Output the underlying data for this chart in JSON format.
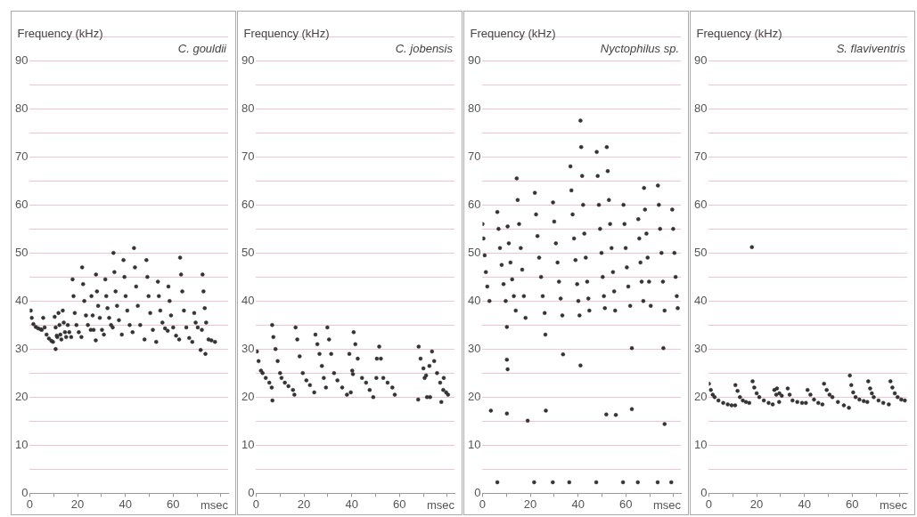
{
  "chart_data": [
    {
      "type": "scatter",
      "title": "C. gouldii",
      "ylabel": "Frequency (kHz)",
      "xlabel": "msec",
      "color": "#333333",
      "marker": "circle",
      "grid": "y",
      "xlim": [
        0,
        83
      ],
      "ylim": [
        0,
        95
      ],
      "xticks": [
        0,
        {
          "value": 10,
          "label": null
        },
        20,
        {
          "value": 30,
          "label": null
        },
        40,
        {
          "value": 50,
          "label": null
        },
        60,
        {
          "value": 70,
          "label": null
        },
        {
          "value": 80,
          "label": null
        }
      ],
      "yticks": [
        0,
        {
          "value": 5,
          "label": null
        },
        10,
        {
          "value": 15,
          "label": null
        },
        20,
        {
          "value": 25,
          "label": null
        },
        30,
        {
          "value": 35,
          "label": null
        },
        40,
        {
          "value": 45,
          "label": null
        },
        50,
        {
          "value": 55,
          "label": null
        },
        60,
        {
          "value": 65,
          "label": null
        },
        70,
        {
          "value": 75,
          "label": null
        },
        80,
        {
          "value": 85,
          "label": null
        },
        90,
        {
          "value": 95,
          "label": null
        }
      ],
      "x": [
        0.4,
        0.8,
        1.5,
        2.5,
        3.5,
        4.5,
        5,
        5.6,
        6.2,
        7,
        8,
        9,
        9.7,
        10.4,
        10.8,
        11.3,
        11.5,
        10.8,
        12,
        12.4,
        12.8,
        13.2,
        13.8,
        14.2,
        14.7,
        15.2,
        15.9,
        16.5,
        17.3,
        17.9,
        18.3,
        18.8,
        19.5,
        20.5,
        21.6,
        21.9,
        22.3,
        22.8,
        23.5,
        24.3,
        25.5,
        25.8,
        26.3,
        26.7,
        27.7,
        28.1,
        28.6,
        29.3,
        30.2,
        31,
        27.6,
        31.6,
        32,
        32.5,
        33.2,
        34,
        34.7,
        35,
        35.4,
        35.9,
        36.5,
        37.3,
        38.5,
        39.2,
        39.6,
        40.1,
        40.8,
        41.8,
        43,
        43.6,
        44,
        44.5,
        45.2,
        46.2,
        48,
        48.8,
        49.2,
        49.7,
        50.4,
        51.5,
        52.9,
        53.6,
        54,
        54.6,
        55.5,
        56.6,
        57.7,
        58,
        58.5,
        59.1,
        60,
        61.2,
        62.5,
        62.9,
        63.3,
        63.8,
        64.5,
        65.5,
        66.7,
        68,
        68.8,
        69.4,
        70.3,
        72,
        72.3,
        72.7,
        73.2,
        73.8,
        74.8,
        76,
        77.5,
        71.5,
        73.5
      ],
      "values": [
        38,
        36.5,
        35.2,
        34.6,
        34.3,
        34.1,
        34,
        36.5,
        34.5,
        33,
        32.2,
        31.7,
        31.5,
        36.7,
        34.5,
        32.8,
        32.5,
        30,
        37.5,
        35,
        33,
        32,
        38,
        35.5,
        33.5,
        32.5,
        35,
        33.5,
        32.5,
        44.5,
        41,
        37.5,
        35,
        33.5,
        32.5,
        47,
        43.5,
        40,
        37,
        35,
        34,
        41,
        37,
        34,
        45.5,
        42,
        39,
        36.5,
        34,
        33,
        31.8,
        44.5,
        41,
        38.5,
        36.5,
        35,
        34.5,
        50,
        46,
        42,
        39,
        36,
        33,
        48.5,
        45,
        41,
        38,
        35,
        33.5,
        51,
        47,
        43,
        39,
        35,
        32,
        48.5,
        45,
        41,
        37.5,
        34,
        31.5,
        44,
        41,
        38,
        35.5,
        34.3,
        33.8,
        43,
        40,
        37,
        34.5,
        32.8,
        32,
        49,
        45.5,
        42,
        38,
        34.5,
        32.3,
        31.5,
        37.5,
        35.5,
        34.5,
        34,
        45.5,
        42,
        38.5,
        35.5,
        32,
        31.8,
        31.5,
        29.8,
        29
      ]
    },
    {
      "type": "scatter",
      "title": "C. jobensis",
      "ylabel": "Frequency (kHz)",
      "xlabel": "msec",
      "color": "#333333",
      "marker": "circle",
      "grid": "y",
      "xlim": [
        0,
        83
      ],
      "ylim": [
        0,
        95
      ],
      "xticks": [
        0,
        {
          "value": 10,
          "label": null
        },
        20,
        {
          "value": 30,
          "label": null
        },
        40,
        {
          "value": 50,
          "label": null
        },
        60,
        {
          "value": 70,
          "label": null
        },
        {
          "value": 80,
          "label": null
        }
      ],
      "yticks": [
        0,
        {
          "value": 5,
          "label": null
        },
        10,
        {
          "value": 15,
          "label": null
        },
        20,
        {
          "value": 25,
          "label": null
        },
        30,
        {
          "value": 35,
          "label": null
        },
        40,
        {
          "value": 45,
          "label": null
        },
        50,
        {
          "value": 55,
          "label": null
        },
        60,
        {
          "value": 65,
          "label": null
        },
        70,
        {
          "value": 75,
          "label": null
        },
        80,
        {
          "value": 85,
          "label": null
        },
        90,
        {
          "value": 95,
          "label": null
        }
      ],
      "x": [
        0.3,
        1,
        2,
        2.7,
        4,
        5.5,
        6.5,
        6.8,
        6.7,
        7.2,
        8.1,
        9,
        10,
        10.6,
        12,
        13.5,
        15.4,
        16,
        16.5,
        17.2,
        18.2,
        19.5,
        21,
        22.5,
        24.3,
        24.8,
        25.6,
        26.5,
        27.5,
        28.3,
        29.2,
        29.8,
        30.5,
        31.4,
        32.6,
        34,
        36,
        38,
        39,
        40.2,
        39.6,
        40.5,
        40.8,
        41.5,
        42.5,
        44.3,
        46,
        47.5,
        49,
        50.5,
        50.3,
        51.5,
        52.2,
        53.2,
        55,
        57,
        58,
        67.8,
        68,
        68.8,
        70,
        71.1,
        70.5,
        72.5,
        71.5,
        72.8,
        73.6,
        74.5,
        75.7,
        77,
        78.3,
        77.5,
        78.5,
        79.5,
        80.3
      ],
      "values": [
        29.5,
        27.5,
        25.5,
        25,
        24,
        23,
        22,
        19.3,
        35,
        32.5,
        30,
        27.5,
        25,
        24,
        23,
        22.3,
        21.5,
        20.5,
        34.5,
        32,
        28.5,
        25,
        23.5,
        22.5,
        21,
        33,
        31,
        29,
        26.5,
        24,
        22,
        34.5,
        32,
        29,
        25,
        23.5,
        22,
        20.5,
        29,
        25.5,
        21,
        24.8,
        33.5,
        31,
        28,
        24,
        23,
        21.5,
        20,
        28,
        24,
        30.5,
        28,
        24,
        23,
        22,
        20.5,
        19.5,
        30.5,
        28,
        26,
        24.5,
        24,
        26.5,
        20,
        20,
        29.5,
        27.5,
        25,
        23,
        21.5,
        19,
        24,
        21,
        20.5
      ]
    },
    {
      "type": "scatter",
      "title": "Nyctophilus sp.",
      "ylabel": "Frequency (kHz)",
      "xlabel": "msec",
      "color": "#333333",
      "marker": "circle",
      "grid": "y",
      "xlim": [
        0,
        83
      ],
      "ylim": [
        0,
        95
      ],
      "xticks": [
        0,
        {
          "value": 10,
          "label": null
        },
        20,
        {
          "value": 30,
          "label": null
        },
        40,
        {
          "value": 50,
          "label": null
        },
        60,
        {
          "value": 70,
          "label": null
        },
        {
          "value": 80,
          "label": null
        }
      ],
      "yticks": [
        0,
        {
          "value": 5,
          "label": null
        },
        10,
        {
          "value": 15,
          "label": null
        },
        20,
        {
          "value": 25,
          "label": null
        },
        30,
        {
          "value": 35,
          "label": null
        },
        40,
        {
          "value": 45,
          "label": null
        },
        50,
        {
          "value": 55,
          "label": null
        },
        60,
        {
          "value": 65,
          "label": null
        },
        70,
        {
          "value": 75,
          "label": null
        },
        80,
        {
          "value": 85,
          "label": null
        },
        90,
        {
          "value": 95,
          "label": null
        }
      ],
      "x": [
        0,
        0.4,
        0.9,
        1.4,
        2,
        2.9,
        6.2,
        6.7,
        7.3,
        8,
        8.8,
        9.7,
        10.5,
        11,
        11.7,
        12.4,
        13.1,
        13.9,
        14.3,
        14.7,
        15.3,
        16,
        16.6,
        17.3,
        18,
        21.9,
        22.4,
        23,
        23.7,
        24.5,
        25.2,
        26,
        29.5,
        30,
        30.7,
        31.4,
        32,
        32.7,
        33.4,
        36.8,
        37.2,
        37.7,
        38.3,
        38.9,
        39.6,
        40.1,
        40.6,
        41,
        41.3,
        41.7,
        42.1,
        42.6,
        43.2,
        43.8,
        44.3,
        44.7,
        47.8,
        48.2,
        48.7,
        49.2,
        49.8,
        50.3,
        50.8,
        51.2,
        52,
        52.4,
        52.9,
        53.4,
        54,
        54.6,
        55.1,
        55.5,
        59,
        59.4,
        59.9,
        60.4,
        61,
        61.8,
        65.2,
        65.6,
        66.1,
        66.6,
        67.3,
        67.6,
        68,
        68.6,
        69.1,
        69.7,
        70.4,
        73.4,
        73.8,
        74.3,
        74.9,
        75.5,
        76.2,
        79.4,
        79.8,
        80.3,
        80.8,
        81.3,
        81.7,
        3.5,
        10.2,
        10.2,
        10.5,
        10.2,
        18.9,
        26.3,
        26.5,
        33.7,
        41,
        51.8,
        55.8,
        62.5,
        62.5,
        75.7,
        76.2,
        6.2,
        21.6,
        29.4,
        36.3,
        47.6,
        58.8,
        65,
        73.3,
        79
      ],
      "values": [
        56,
        53,
        49.5,
        46,
        43,
        40,
        58.5,
        55,
        51,
        47.5,
        43.5,
        40,
        55.5,
        52,
        48,
        44.5,
        41,
        38,
        65.5,
        61,
        56,
        51,
        46.5,
        41,
        36.5,
        62.5,
        58,
        53.5,
        49,
        45,
        41,
        37.5,
        60.5,
        56.5,
        52,
        48,
        44,
        40.5,
        37,
        68,
        63,
        58,
        53,
        48.5,
        43.5,
        40,
        37,
        77.5,
        72,
        66,
        60,
        54,
        49,
        44,
        40.5,
        38,
        71,
        66,
        60,
        55,
        50,
        45,
        41,
        38.5,
        72,
        67,
        61,
        56,
        51,
        46,
        42,
        38,
        60,
        56,
        51,
        47,
        43,
        39,
        57,
        53,
        48,
        44,
        40,
        63.5,
        59,
        54,
        49,
        44,
        39,
        64,
        60,
        55,
        50,
        44,
        38,
        59,
        55,
        50,
        45,
        41,
        38.5,
        17.2,
        34.6,
        27.8,
        25.8,
        16.6,
        15.1,
        33,
        17.2,
        28.9,
        26.6,
        16.4,
        16.3,
        30.2,
        17.5,
        30.2,
        14.4,
        2.3,
        2.3,
        2.3,
        2.3,
        2.3,
        2.3,
        2.3,
        2.3,
        2.3
      ]
    },
    {
      "type": "scatter",
      "title": "S. flaviventris",
      "ylabel": "Frequency (kHz)",
      "xlabel": "msec",
      "color": "#333333",
      "marker": "circle",
      "grid": "y",
      "xlim": [
        0,
        83
      ],
      "ylim": [
        0,
        95
      ],
      "xticks": [
        0,
        {
          "value": 10,
          "label": null
        },
        20,
        {
          "value": 30,
          "label": null
        },
        40,
        {
          "value": 50,
          "label": null
        },
        60,
        {
          "value": 70,
          "label": null
        },
        {
          "value": 80,
          "label": null
        }
      ],
      "yticks": [
        0,
        {
          "value": 5,
          "label": null
        },
        10,
        {
          "value": 15,
          "label": null
        },
        20,
        {
          "value": 25,
          "label": null
        },
        30,
        {
          "value": 35,
          "label": null
        },
        40,
        {
          "value": 45,
          "label": null
        },
        50,
        {
          "value": 55,
          "label": null
        },
        60,
        {
          "value": 65,
          "label": null
        },
        70,
        {
          "value": 75,
          "label": null
        },
        80,
        {
          "value": 85,
          "label": null
        },
        90,
        {
          "value": 95,
          "label": null
        }
      ],
      "x": [
        0,
        0.8,
        1.6,
        2.4,
        4,
        6,
        7.9,
        9.5,
        11,
        11.1,
        12,
        13,
        14.2,
        15.5,
        16.9,
        18.3,
        19,
        20,
        21.1,
        23,
        25,
        26.7,
        27.4,
        28.2,
        29.4,
        28.5,
        29.5,
        30.5,
        33,
        33.8,
        35,
        37,
        39,
        40.6,
        41.3,
        42.5,
        44,
        45.8,
        47.5,
        48.2,
        49.3,
        50.5,
        51.7,
        54,
        56.5,
        58.6,
        59,
        59.6,
        60.4,
        61.4,
        63,
        64.8,
        66.3,
        66.7,
        67.5,
        68.2,
        69,
        71,
        73,
        75.3,
        76,
        76.8,
        77.8,
        79,
        80.5,
        82,
        18
      ],
      "values": [
        22.8,
        21.5,
        20.5,
        20,
        19.3,
        18.8,
        18.5,
        18.3,
        18.3,
        22.5,
        21.3,
        20,
        19.3,
        19,
        18.8,
        23.3,
        22,
        20.8,
        20,
        19.3,
        18.8,
        18.5,
        21.5,
        20.5,
        19,
        21.8,
        20.8,
        20.3,
        21.8,
        20.5,
        19.3,
        19,
        18.8,
        18.8,
        21.5,
        20.5,
        19.5,
        18.8,
        18.5,
        22.8,
        21.5,
        20.5,
        20,
        19,
        18.3,
        17.8,
        24.5,
        22.5,
        21,
        20,
        19.5,
        19.2,
        19,
        23.3,
        21.8,
        20.8,
        20,
        19.3,
        18.8,
        18.5,
        23.3,
        22,
        20.8,
        20,
        19.5,
        19.3,
        51.2
      ]
    }
  ]
}
